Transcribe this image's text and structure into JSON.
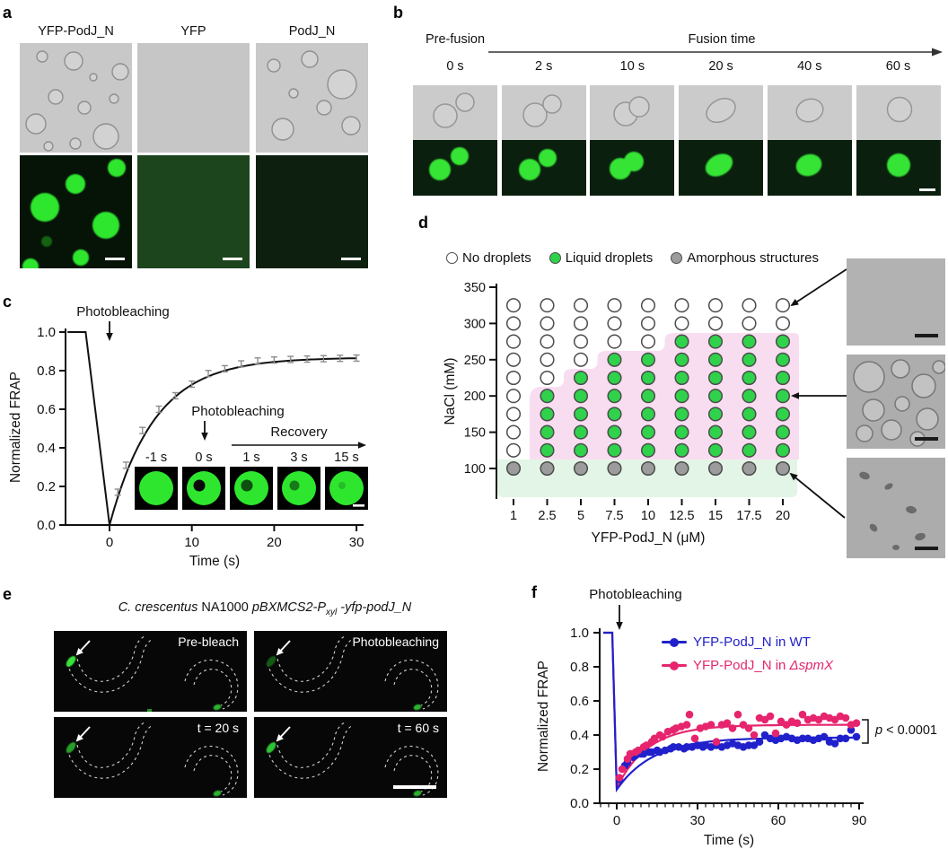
{
  "colors": {
    "wt_blue": "#2121cc",
    "spmx_pink": "#e6256e",
    "liquid_green": "#2fd24a",
    "amorphous_gray": "#9c9c9c",
    "dot_outline": "#4c4c4c",
    "pink_region": "#f8ddf1",
    "mint_region": "#e2f5e6",
    "droplet_green": "#2ee62e"
  },
  "panels": {
    "a": {
      "label": "a",
      "columns": [
        "YFP-PodJ_N",
        "YFP",
        "PodJ_N"
      ]
    },
    "b": {
      "label": "b",
      "pre_fusion": "Pre-fusion",
      "fusion_time": "Fusion time",
      "timepoints": [
        "0 s",
        "2 s",
        "10 s",
        "20 s",
        "40 s",
        "60 s"
      ]
    },
    "c": {
      "label": "c"
    },
    "d": {
      "label": "d"
    },
    "e": {
      "label": "e",
      "title": {
        "organism": "C. crescentus",
        "strain": " NA1000  ",
        "plasmid": "pBXMCS2-P",
        "promoter_sub": "xyl",
        "fusion": " -yfp-podJ_N"
      },
      "frames": [
        "Pre-bleach",
        "Photobleaching",
        "t = 20 s",
        "t = 60 s"
      ]
    },
    "f": {
      "label": "f"
    }
  },
  "chart_data": [
    {
      "id": "panel_c_frap",
      "type": "line",
      "xlabel": "Time (s)",
      "ylabel": "Normalized FRAP",
      "xlim": [
        -5.3,
        30.8
      ],
      "ylim": [
        0,
        1.0
      ],
      "xticks": [
        {
          "v": 0,
          "label": "0"
        },
        {
          "v": 10,
          "label": "10"
        },
        {
          "v": 20,
          "label": "20"
        },
        {
          "v": 30,
          "label": "30"
        }
      ],
      "yticks": [
        {
          "v": 0.0,
          "label": "0.0"
        },
        {
          "v": 0.2,
          "label": "0.2"
        },
        {
          "v": 0.4,
          "label": "0.4"
        },
        {
          "v": 0.6,
          "label": "0.6"
        },
        {
          "v": 0.8,
          "label": "0.8"
        },
        {
          "v": 1.0,
          "label": "1.0"
        }
      ],
      "annotation": "Photobleaching",
      "prebleach": {
        "t_start": -5.1,
        "t_end": -2.9,
        "value": 1.0
      },
      "bleach": {
        "t": 0,
        "value": 0.0
      },
      "recovery": {
        "t": [
          1,
          2,
          4,
          6,
          8,
          10,
          12,
          14,
          16,
          18,
          20,
          22,
          24,
          26,
          28,
          30
        ],
        "y": [
          0.17,
          0.31,
          0.49,
          0.6,
          0.67,
          0.73,
          0.785,
          0.81,
          0.835,
          0.85,
          0.855,
          0.858,
          0.86,
          0.862,
          0.864,
          0.865
        ],
        "yerr": 0.016,
        "fit": {
          "plateau": 0.868,
          "tau": 5.5
        }
      },
      "inset": {
        "photobleaching": "Photobleaching",
        "recovery": "Recovery",
        "times": [
          "-1 s",
          "0 s",
          "1 s",
          "3 s",
          "15 s"
        ]
      }
    },
    {
      "id": "panel_d_phase_diagram",
      "type": "scatter",
      "xlabel": "YFP-PodJ_N (μM)",
      "ylabel": "NaCl (mM)",
      "legend": [
        {
          "key": "N",
          "label": "No droplets",
          "fill": "#ffffff"
        },
        {
          "key": "L",
          "label": "Liquid droplets",
          "fill": "#2fd24a"
        },
        {
          "key": "A",
          "label": "Amorphous structures",
          "fill": "#9c9c9c"
        }
      ],
      "x_values": [
        1,
        2.5,
        5,
        7.5,
        10,
        12.5,
        15,
        17.5,
        20
      ],
      "xtick_labels": [
        "1",
        "2.5",
        "5",
        "7.5",
        "10",
        "12.5",
        "15",
        "17.5",
        "20"
      ],
      "ytick_values": [
        350,
        300,
        250,
        200,
        150,
        100
      ],
      "ytick_labels": [
        "350",
        "300",
        "250",
        "200",
        "150",
        "100"
      ],
      "rows": [
        {
          "nacl": 325,
          "states": "NNNNNNNNN"
        },
        {
          "nacl": 300,
          "states": "NNNNNNNNN"
        },
        {
          "nacl": 275,
          "states": "NNNNNLLLL"
        },
        {
          "nacl": 250,
          "states": "NNNLLLLLL"
        },
        {
          "nacl": 225,
          "states": "NNLLLLLLL"
        },
        {
          "nacl": 200,
          "states": "NLLLLLLLL"
        },
        {
          "nacl": 175,
          "states": "NLLLLLLLL"
        },
        {
          "nacl": 150,
          "states": "NLLLLLLLL"
        },
        {
          "nacl": 125,
          "states": "NLLLLLLLL"
        },
        {
          "nacl": 100,
          "states": "AAAAAAAAA"
        }
      ],
      "regions": {
        "liquid_fill": "#f8ddf1",
        "amorphous_fill": "#e2f5e6"
      }
    },
    {
      "id": "panel_f_invivo_frap",
      "type": "scatter",
      "xlabel": "Time (s)",
      "ylabel": "Normalized FRAP",
      "xticks": [
        {
          "v": 0,
          "label": "0"
        },
        {
          "v": 30,
          "label": "30"
        },
        {
          "v": 60,
          "label": "60"
        },
        {
          "v": 90,
          "label": "90"
        }
      ],
      "minor_tick_step": 3,
      "yticks": [
        {
          "v": 0.0,
          "label": "0.0"
        },
        {
          "v": 0.2,
          "label": "0.2"
        },
        {
          "v": 0.4,
          "label": "0.4"
        },
        {
          "v": 0.6,
          "label": "0.6"
        },
        {
          "v": 0.8,
          "label": "0.8"
        },
        {
          "v": 1.0,
          "label": "1.0"
        }
      ],
      "annotation": "Photobleaching",
      "p_value": {
        "p": "p",
        "rest": " < 0.0001",
        "text": "p < 0.0001"
      },
      "series": [
        {
          "name": "YFP-PodJ_N in WT",
          "name_parts": {
            "prefix": "YFP-PodJ_N in WT",
            "gene": ""
          },
          "color": "#2121cc",
          "fit": {
            "y0": 0.08,
            "amplitude": 0.305,
            "tau": 13.5
          },
          "points_t": [
            1,
            3,
            4,
            6,
            7,
            9,
            10,
            12,
            13,
            15,
            16,
            18,
            20,
            21,
            23,
            25,
            26,
            28,
            30,
            32,
            33,
            35,
            37,
            39,
            41,
            43,
            45,
            47,
            49,
            51,
            53,
            55,
            57,
            59,
            61,
            63,
            65,
            67,
            69,
            71,
            73,
            75,
            77,
            79,
            81,
            83,
            85,
            87,
            89
          ],
          "points_y": [
            0.14,
            0.22,
            0.24,
            0.27,
            0.28,
            0.29,
            0.29,
            0.3,
            0.3,
            0.31,
            0.3,
            0.31,
            0.32,
            0.33,
            0.33,
            0.32,
            0.33,
            0.33,
            0.34,
            0.33,
            0.34,
            0.33,
            0.34,
            0.33,
            0.34,
            0.35,
            0.34,
            0.33,
            0.34,
            0.34,
            0.36,
            0.4,
            0.38,
            0.37,
            0.38,
            0.39,
            0.38,
            0.37,
            0.38,
            0.38,
            0.37,
            0.38,
            0.39,
            0.36,
            0.35,
            0.38,
            0.38,
            0.43,
            0.39
          ]
        },
        {
          "name": "YFP-PodJ_N in ΔspmX",
          "name_parts": {
            "prefix": "YFP-PodJ_N in ",
            "gene": "ΔspmX"
          },
          "color": "#e6256e",
          "fit": {
            "y0": 0.09,
            "amplitude": 0.37,
            "tau": 11.5
          },
          "points_t": [
            1,
            2,
            4,
            5,
            7,
            8,
            10,
            11,
            13,
            14,
            16,
            17,
            19,
            21,
            22,
            24,
            26,
            27,
            29,
            31,
            33,
            35,
            37,
            39,
            41,
            43,
            45,
            47,
            49,
            51,
            53,
            55,
            57,
            59,
            61,
            63,
            65,
            67,
            69,
            71,
            73,
            75,
            77,
            79,
            81,
            83,
            85,
            87,
            89
          ],
          "points_y": [
            0.15,
            0.2,
            0.26,
            0.29,
            0.3,
            0.31,
            0.33,
            0.34,
            0.36,
            0.38,
            0.4,
            0.39,
            0.42,
            0.43,
            0.44,
            0.45,
            0.46,
            0.52,
            0.38,
            0.44,
            0.45,
            0.46,
            0.36,
            0.46,
            0.47,
            0.44,
            0.52,
            0.46,
            0.44,
            0.4,
            0.5,
            0.49,
            0.51,
            0.41,
            0.48,
            0.46,
            0.48,
            0.47,
            0.52,
            0.49,
            0.5,
            0.49,
            0.51,
            0.5,
            0.49,
            0.51,
            0.5,
            0.46,
            0.47
          ]
        }
      ]
    }
  ]
}
